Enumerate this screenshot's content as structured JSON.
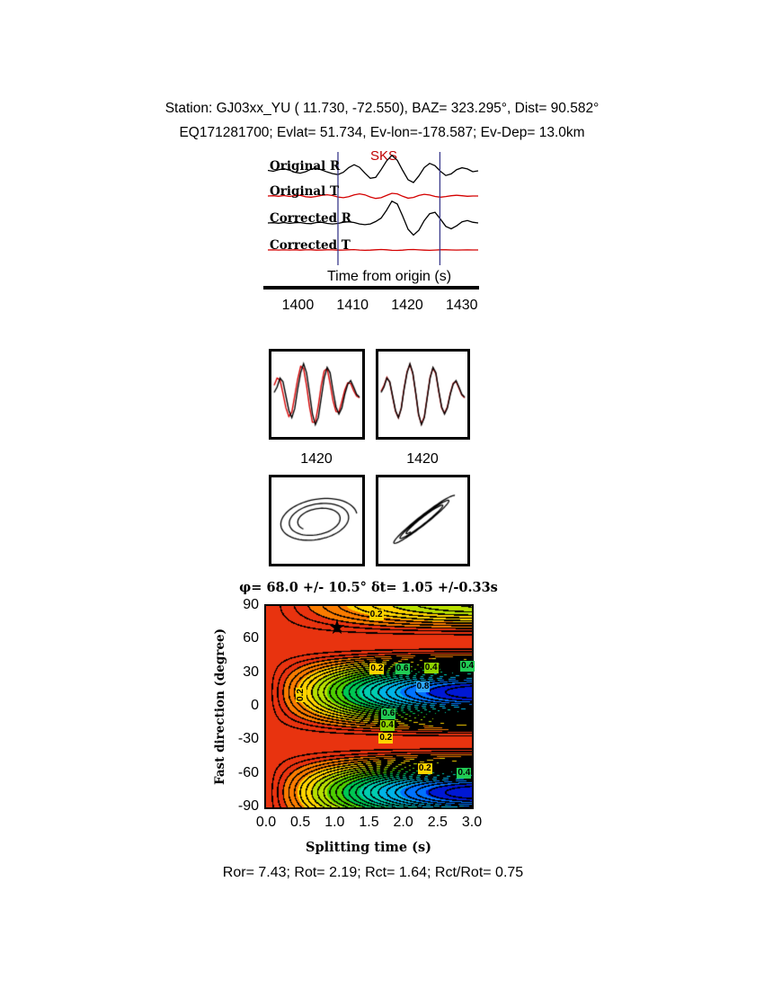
{
  "header": {
    "line1": "Station: GJ03xx_YU (  11.730,  -72.550), BAZ=  323.295°, Dist=   90.582°",
    "line2": "EQ171281700; Evlat=  51.734, Ev-lon=-178.587; Ev-Dep= 13.0km"
  },
  "footer": {
    "text": "Ror= 7.43; Rot= 2.19; Rct= 1.64; Rct/Rot= 0.75"
  },
  "colors": {
    "trace_red": "#d40000",
    "trace_black": "#000000",
    "window_line": "#3a3a8c",
    "phase_red": "#c00000"
  },
  "chart_data": {
    "type": "composite",
    "waveforms": {
      "phase_label": "SKS",
      "axis": {
        "title": "Time from origin (s)",
        "t_start": 1394,
        "t_end": 1433,
        "ticks": [
          1400,
          1410,
          1420,
          1430
        ],
        "window": [
          1407,
          1425.9
        ]
      },
      "traces": [
        {
          "label": "Original R",
          "color": "#000000",
          "values": [
            0.02,
            -0.02,
            0.05,
            0.09,
            0.03,
            -0.06,
            -0.1,
            -0.04,
            0.07,
            0.11,
            0.04,
            -0.05,
            -0.12,
            -0.16,
            -0.06,
            0.14,
            0.26,
            0.15,
            -0.1,
            -0.32,
            -0.28,
            0.05,
            0.42,
            0.66,
            0.45,
            0.02,
            -0.38,
            -0.5,
            -0.22,
            0.14,
            0.32,
            0.22,
            -0.02,
            -0.2,
            -0.13,
            0.05,
            0.13,
            0.08,
            -0.04,
            0.0
          ]
        },
        {
          "label": "Original T",
          "color": "#d40000",
          "values": [
            0.0,
            0.02,
            -0.02,
            0.03,
            -0.03,
            0.02,
            0.05,
            -0.05,
            -0.08,
            -0.03,
            0.05,
            0.09,
            0.03,
            -0.07,
            -0.12,
            -0.05,
            0.08,
            0.15,
            0.08,
            -0.07,
            -0.17,
            -0.12,
            0.04,
            0.19,
            0.15,
            -0.02,
            -0.15,
            -0.1,
            0.04,
            0.12,
            0.07,
            -0.03,
            -0.08,
            -0.04,
            0.02,
            0.05,
            0.02,
            -0.02,
            0.0,
            0.0
          ]
        },
        {
          "label": "Corrected R",
          "color": "#000000",
          "values": [
            0.0,
            0.01,
            -0.01,
            0.02,
            -0.02,
            0.01,
            0.02,
            -0.02,
            -0.03,
            0.02,
            0.03,
            -0.02,
            -0.04,
            -0.02,
            0.03,
            0.05,
            0.02,
            -0.04,
            -0.07,
            -0.04,
            0.06,
            0.2,
            0.52,
            0.9,
            0.78,
            0.28,
            -0.26,
            -0.5,
            -0.3,
            0.1,
            0.38,
            0.44,
            0.16,
            -0.14,
            -0.24,
            -0.12,
            0.05,
            0.1,
            0.03,
            0.0
          ]
        },
        {
          "label": "Corrected T",
          "color": "#d40000",
          "values": [
            0.0,
            0.01,
            -0.01,
            0.01,
            -0.01,
            0.02,
            -0.02,
            0.01,
            0.02,
            -0.02,
            -0.01,
            0.02,
            0.01,
            -0.02,
            -0.01,
            0.02,
            0.03,
            -0.01,
            -0.03,
            -0.02,
            0.02,
            0.04,
            0.02,
            -0.03,
            -0.04,
            -0.02,
            0.03,
            0.04,
            0.01,
            -0.02,
            -0.03,
            -0.01,
            0.02,
            0.02,
            0.0,
            -0.01,
            0.0,
            0.01,
            0.0,
            0.0
          ]
        }
      ]
    },
    "panels": {
      "time_labels": [
        "1420",
        "1420"
      ],
      "wave_overlays": [
        {
          "black": [
            0.05,
            0.2,
            0.45,
            0.35,
            -0.05,
            -0.45,
            -0.65,
            -0.4,
            0.15,
            0.6,
            0.85,
            0.6,
            0.05,
            -0.55,
            -0.85,
            -0.65,
            -0.1,
            0.45,
            0.75,
            0.6,
            0.1,
            -0.35,
            -0.55,
            -0.38,
            0.0,
            0.28,
            0.38,
            0.2,
            0.0,
            -0.08
          ],
          "red": [
            0.25,
            0.45,
            0.4,
            0.02,
            -0.38,
            -0.62,
            -0.5,
            -0.05,
            0.42,
            0.78,
            0.72,
            0.25,
            -0.35,
            -0.78,
            -0.78,
            -0.32,
            0.25,
            0.65,
            0.72,
            0.3,
            -0.18,
            -0.48,
            -0.5,
            -0.2,
            0.12,
            0.32,
            0.3,
            0.1,
            -0.05,
            -0.1
          ]
        },
        {
          "black": [
            0.05,
            0.2,
            0.45,
            0.35,
            -0.05,
            -0.45,
            -0.65,
            -0.4,
            0.15,
            0.6,
            0.85,
            0.6,
            0.05,
            -0.55,
            -0.85,
            -0.65,
            -0.1,
            0.45,
            0.75,
            0.6,
            0.1,
            -0.35,
            -0.55,
            -0.38,
            0.0,
            0.28,
            0.38,
            0.2,
            0.0,
            -0.08
          ],
          "red": [
            0.08,
            0.24,
            0.47,
            0.33,
            -0.08,
            -0.48,
            -0.66,
            -0.38,
            0.18,
            0.63,
            0.83,
            0.57,
            0.02,
            -0.58,
            -0.83,
            -0.62,
            -0.07,
            0.48,
            0.73,
            0.57,
            0.07,
            -0.38,
            -0.53,
            -0.35,
            0.03,
            0.3,
            0.36,
            0.17,
            -0.02,
            -0.1
          ]
        }
      ],
      "particle_motion": [
        {
          "b": 0.55,
          "tilt_deg": 10,
          "decay": 0.55,
          "loops": 2.6
        },
        {
          "b": 0.12,
          "tilt_deg": 38,
          "decay": 0.5,
          "loops": 2.6
        }
      ]
    },
    "contour": {
      "type": "contour",
      "title": "φ= 68.0 +/- 10.5° δt= 1.05 +/-0.33s",
      "xlabel": "Splitting time (s)",
      "ylabel": "Fast direction (degree)",
      "xticks": [
        "0.0",
        "0.5",
        "1.0",
        "1.5",
        "2.0",
        "2.5",
        "3.0"
      ],
      "yticks": [
        90,
        60,
        30,
        0,
        -30,
        -60,
        -90
      ],
      "xlim": [
        0,
        3
      ],
      "ylim": [
        -90,
        90
      ],
      "best": {
        "phi": 68.0,
        "phi_err": 10.5,
        "dt": 1.05,
        "dt_err": 0.33
      },
      "star": {
        "t": 1.05,
        "phi": 68,
        "glyph": "★"
      },
      "model": {
        "phi0": 13,
        "period": 6.4,
        "interval": 0.04
      },
      "palette": [
        {
          "upto": 0.12,
          "color": "#e8330f"
        },
        {
          "upto": 0.22,
          "color": "#f97b00"
        },
        {
          "upto": 0.32,
          "color": "#ffd400"
        },
        {
          "upto": 0.42,
          "color": "#b8e000"
        },
        {
          "upto": 0.52,
          "color": "#4fd000"
        },
        {
          "upto": 0.62,
          "color": "#00c853"
        },
        {
          "upto": 0.72,
          "color": "#00cdb0"
        },
        {
          "upto": 0.82,
          "color": "#00b4e6"
        },
        {
          "upto": 0.91,
          "color": "#0072ff"
        },
        {
          "upto": 1.01,
          "color": "#0018d4"
        }
      ],
      "labels": [
        {
          "t": 1.62,
          "phi": 81,
          "text": "0.2",
          "bg": "#ffd400"
        },
        {
          "t": 0.52,
          "phi": 10,
          "text": "0.2",
          "bg": "#ffd400",
          "rot": 90
        },
        {
          "t": 1.63,
          "phi": 33,
          "text": "0.2",
          "bg": "#ffd400"
        },
        {
          "t": 2.0,
          "phi": 33,
          "text": "0.6",
          "bg": "#22cc55"
        },
        {
          "t": 2.42,
          "phi": 34,
          "text": "0.4",
          "bg": "#8fd400"
        },
        {
          "t": 2.3,
          "phi": 17,
          "text": "0.8",
          "bg": "#2fa8ff"
        },
        {
          "t": 2.95,
          "phi": 35,
          "text": "0.4",
          "bg": "#22cc55"
        },
        {
          "t": 1.8,
          "phi": -7,
          "text": "0.6",
          "bg": "#22cc55"
        },
        {
          "t": 1.78,
          "phi": -18,
          "text": "0.4",
          "bg": "#8fd400"
        },
        {
          "t": 1.76,
          "phi": -29,
          "text": "0.2",
          "bg": "#ffd400"
        },
        {
          "t": 2.33,
          "phi": -56,
          "text": "0.2",
          "bg": "#ffd400"
        },
        {
          "t": 2.9,
          "phi": -60,
          "text": "0.4",
          "bg": "#22cc55"
        }
      ]
    }
  }
}
